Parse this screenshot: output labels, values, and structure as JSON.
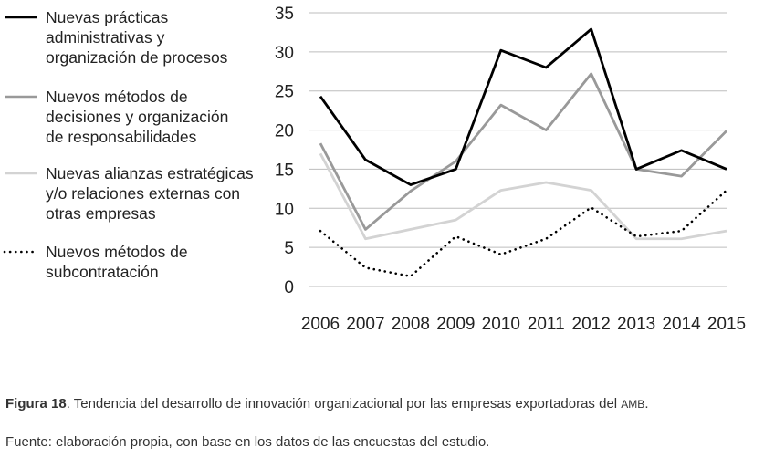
{
  "chart_data": {
    "type": "line",
    "x": [
      2006,
      2007,
      2008,
      2009,
      2010,
      2011,
      2012,
      2013,
      2014,
      2015
    ],
    "ylim": [
      0,
      35
    ],
    "yticks": [
      0,
      5,
      10,
      15,
      20,
      25,
      30,
      35
    ],
    "grid": "horizontal",
    "legend_position": "left",
    "series": [
      {
        "name": "Nuevas prácticas administrativas y organización de procesos",
        "name_lines": [
          "Nuevas prácticas",
          "administrativas y",
          "organización de procesos"
        ],
        "color": "#000000",
        "style": "solid",
        "values": [
          24.3,
          16.2,
          13.0,
          15.0,
          30.2,
          28.0,
          32.9,
          15.0,
          17.4,
          15.0
        ]
      },
      {
        "name": "Nuevos métodos de decisiones y organización de responsabilidades",
        "name_lines": [
          "Nuevos métodos de",
          "decisiones y organización",
          "de responsabilidades"
        ],
        "color": "#999999",
        "style": "solid",
        "values": [
          18.3,
          7.3,
          12.2,
          16.0,
          23.2,
          20.0,
          27.2,
          15.0,
          14.1,
          19.9
        ]
      },
      {
        "name": "Nuevas alianzas estratégicas y/o relaciones externas con otras empresas",
        "name_lines": [
          "Nuevas alianzas estratégicas",
          "y/o relaciones externas con",
          "otras empresas"
        ],
        "color": "#d3d3d3",
        "style": "solid",
        "values": [
          17.0,
          6.1,
          7.3,
          8.5,
          12.3,
          13.3,
          12.3,
          6.1,
          6.1,
          7.1
        ]
      },
      {
        "name": "Nuevos métodos de subcontratación",
        "name_lines": [
          "Nuevos métodos de",
          "subcontratación"
        ],
        "color": "#000000",
        "style": "dotted",
        "values": [
          7.1,
          2.4,
          1.3,
          6.4,
          4.1,
          6.1,
          10.1,
          6.4,
          7.1,
          12.3
        ]
      }
    ]
  },
  "caption": {
    "figure_label": "Figura 18",
    "text_main": ". Tendencia del desarrollo de innovación organizacional por las empresas exportadoras del ",
    "text_abbr": "AMB",
    "text_end": ".",
    "source": "Fuente: elaboración propia, con base en los datos de las encuestas del estudio."
  }
}
